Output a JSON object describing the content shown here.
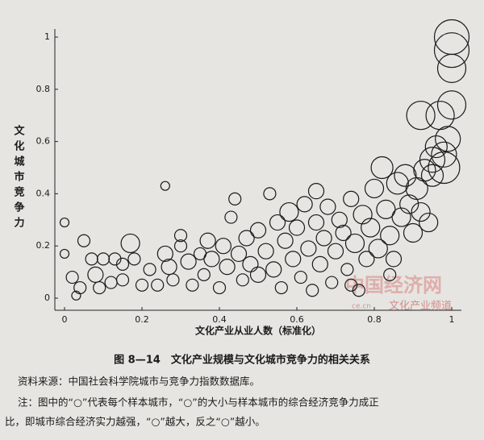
{
  "chart_data": {
    "type": "scatter",
    "ylabel": "文化城市竞争力",
    "xlabel": "文化产业从业人数（标准化）",
    "caption": "图 8—14　文化产业规模与文化城市竞争力的相关关系",
    "source": "资料来源：中国社会科学院城市与竞争力指数数据库。",
    "note": [
      "注：图中的“○”代表每个样本城市，“○”的大小与样本城市的综合经济竞争力成正",
      "比，即城市综合经济实力越强，“○”越大，反之“○”越小。"
    ],
    "watermark": [
      "中国经济网",
      "ce.cn",
      "文化产业频道"
    ],
    "color": "#1a1a1a",
    "xlim": [
      0,
      1
    ],
    "ylim": [
      0,
      1
    ],
    "xticks": [
      0,
      0.2,
      0.4,
      0.6,
      0.8,
      1
    ],
    "yticks": [
      0,
      0.2,
      0.4,
      0.6,
      0.8,
      1
    ],
    "x": [
      0,
      0,
      0.02,
      0.03,
      0.04,
      0.05,
      0.07,
      0.08,
      0.1,
      0.12,
      0.13,
      0.15,
      0.17,
      0.18,
      0.2,
      0.22,
      0.24,
      0.26,
      0.26,
      0.27,
      0.28,
      0.3,
      0.3,
      0.32,
      0.33,
      0.35,
      0.36,
      0.38,
      0.4,
      0.41,
      0.42,
      0.43,
      0.44,
      0.45,
      0.46,
      0.47,
      0.48,
      0.5,
      0.5,
      0.52,
      0.53,
      0.54,
      0.55,
      0.56,
      0.57,
      0.58,
      0.59,
      0.6,
      0.61,
      0.62,
      0.63,
      0.64,
      0.65,
      0.65,
      0.66,
      0.67,
      0.68,
      0.69,
      0.7,
      0.71,
      0.72,
      0.73,
      0.74,
      0.75,
      0.76,
      0.77,
      0.78,
      0.79,
      0.8,
      0.81,
      0.82,
      0.83,
      0.84,
      0.85,
      0.86,
      0.87,
      0.88,
      0.89,
      0.9,
      0.91,
      0.92,
      0.93,
      0.94,
      0.95,
      0.95,
      0.96,
      0.97,
      0.98,
      0.99,
      1,
      0.92,
      1,
      1,
      1,
      0.98,
      0.15,
      0.09,
      0.37,
      0.74,
      0.84
    ],
    "values": [
      0.29,
      0.17,
      0.08,
      0.01,
      0.04,
      0.22,
      0.15,
      0.09,
      0.15,
      0.06,
      0.15,
      0.07,
      0.21,
      0.15,
      0.05,
      0.11,
      0.05,
      0.43,
      0.17,
      0.12,
      0.07,
      0.2,
      0.24,
      0.14,
      0.05,
      0.17,
      0.09,
      0.15,
      0.04,
      0.2,
      0.12,
      0.31,
      0.38,
      0.17,
      0.07,
      0.23,
      0.13,
      0.26,
      0.09,
      0.18,
      0.4,
      0.11,
      0.29,
      0.04,
      0.22,
      0.33,
      0.15,
      0.27,
      0.08,
      0.36,
      0.19,
      0.03,
      0.41,
      0.29,
      0.13,
      0.23,
      0.35,
      0.06,
      0.18,
      0.3,
      0.25,
      0.11,
      0.38,
      0.21,
      0.03,
      0.32,
      0.15,
      0.27,
      0.42,
      0.19,
      0.5,
      0.34,
      0.24,
      0.15,
      0.44,
      0.31,
      0.47,
      0.36,
      0.25,
      0.42,
      0.33,
      0.49,
      0.29,
      0.47,
      0.53,
      0.58,
      0.7,
      0.5,
      0.61,
      0.74,
      0.7,
      0.88,
      0.95,
      1,
      0.55,
      0.13,
      0.04,
      0.22,
      0.05,
      0.09
    ],
    "sizes": [
      2,
      2,
      3,
      2,
      3,
      3,
      3,
      4,
      3,
      3,
      3,
      3,
      5,
      3,
      3,
      3,
      3,
      2,
      4,
      4,
      3,
      3,
      3,
      4,
      3,
      3,
      3,
      4,
      3,
      4,
      4,
      3,
      3,
      4,
      3,
      4,
      4,
      4,
      4,
      4,
      3,
      4,
      4,
      3,
      4,
      5,
      4,
      4,
      3,
      4,
      4,
      3,
      4,
      4,
      4,
      4,
      4,
      3,
      4,
      4,
      4,
      3,
      4,
      5,
      3,
      5,
      4,
      5,
      5,
      5,
      6,
      5,
      5,
      4,
      6,
      5,
      6,
      5,
      5,
      6,
      5,
      6,
      5,
      6,
      7,
      6,
      8,
      9,
      7,
      8,
      8,
      8,
      10,
      10,
      7,
      3,
      3,
      4,
      3,
      3
    ]
  }
}
